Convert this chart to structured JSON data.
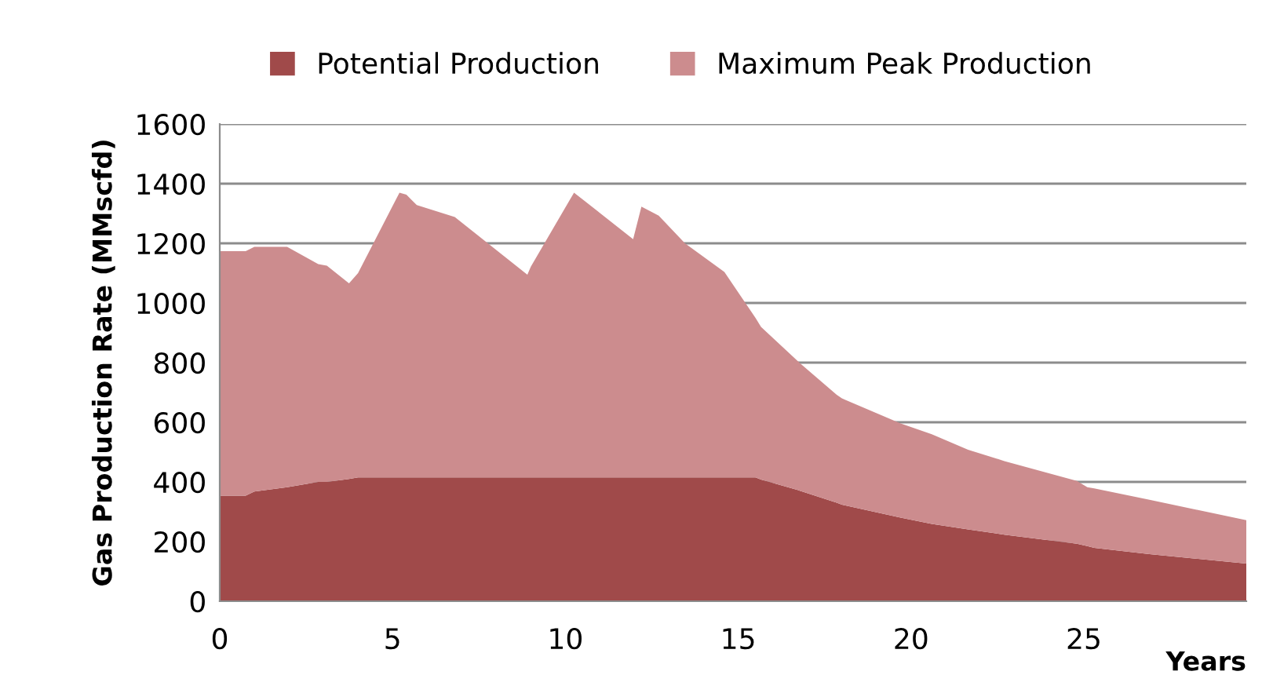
{
  "chart_data": {
    "type": "area",
    "stacked": true,
    "xlabel": "Years",
    "ylabel": "Gas Production Rate (MMscfd)",
    "x": [
      0,
      0.75,
      1,
      1.95,
      2.85,
      3.1,
      3.74,
      4,
      5.2,
      5.4,
      5.7,
      6.8,
      8.9,
      9.0,
      10.25,
      11.96,
      12.2,
      12.7,
      13.46,
      14.6,
      15.5,
      15.66,
      16.8,
      17.85,
      18.0,
      19.7,
      20.6,
      21.65,
      22.7,
      24.8,
      25.1,
      25.3,
      26.9,
      29.7
    ],
    "series": [
      {
        "name": "Potential Production",
        "color": "#a04a4a",
        "values": [
          354,
          354,
          368,
          382,
          400,
          400,
          410,
          415,
          415,
          415,
          415,
          415,
          415,
          415,
          415,
          415,
          415,
          415,
          415,
          415,
          415,
          408,
          370,
          330,
          324,
          280,
          259,
          241,
          223,
          193,
          185,
          179,
          158,
          126
        ]
      },
      {
        "name": "Maximum Peak Production",
        "color": "#cc8c8e",
        "values": [
          820,
          820,
          820,
          806,
          730,
          725,
          656,
          685,
          955,
          948,
          913,
          873,
          680,
          707,
          955,
          799,
          908,
          878,
          785,
          689,
          535,
          512,
          427,
          362,
          356,
          316,
          301,
          267,
          247,
          210,
          197,
          199,
          182,
          146
        ]
      }
    ],
    "xlim": [
      0,
      29.7
    ],
    "xticks": [
      0,
      5,
      10,
      15,
      20,
      25
    ],
    "ylim": [
      0,
      1600
    ],
    "yticks": [
      0,
      200,
      400,
      600,
      800,
      1000,
      1200,
      1400,
      1600
    ],
    "grid": "y",
    "legend": "top"
  }
}
